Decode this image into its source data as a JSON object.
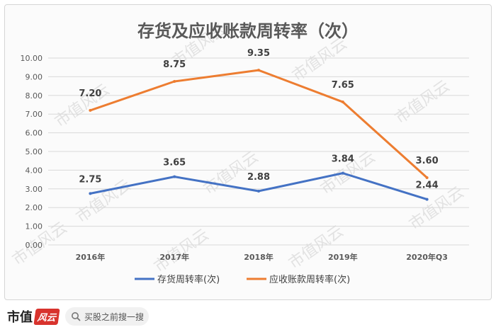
{
  "chart_data": {
    "type": "line",
    "title": "存货及应收账款周转率（次）",
    "categories": [
      "2016年",
      "2017年",
      "2018年",
      "2019年",
      "2020年Q3"
    ],
    "ylim": [
      0,
      10
    ],
    "yticks": [
      "0.00",
      "1.00",
      "2.00",
      "3.00",
      "4.00",
      "5.00",
      "6.00",
      "7.00",
      "8.00",
      "9.00",
      "10.00"
    ],
    "grid": true,
    "legend_position": "bottom",
    "series": [
      {
        "name": "存货周转率(次)",
        "color": "#4472c4",
        "values": [
          2.75,
          3.65,
          2.88,
          3.84,
          2.44
        ],
        "labels": [
          "2.75",
          "3.65",
          "2.88",
          "3.84",
          "2.44"
        ]
      },
      {
        "name": "应收账款周转率(次)",
        "color": "#ed7d31",
        "values": [
          7.2,
          8.75,
          9.35,
          7.65,
          3.6
        ],
        "labels": [
          "7.20",
          "8.75",
          "9.35",
          "7.65",
          "3.60"
        ]
      }
    ]
  },
  "watermark": "市值风云",
  "footer": {
    "brand": "市值",
    "stamp": "风云",
    "search_text": "买股之前搜一搜",
    "icon": "search-icon"
  }
}
